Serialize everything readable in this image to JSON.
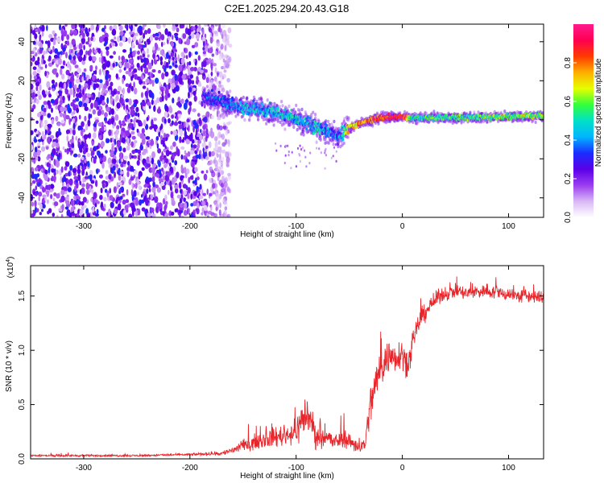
{
  "title": "C2E1.2025.294.20.43.G18",
  "chart_data": [
    {
      "type": "heatmap",
      "xlabel": "Height of straight line (km)",
      "ylabel": "Frequency (Hz)",
      "xlim": [
        -350,
        133
      ],
      "ylim": [
        -50,
        49
      ],
      "xticks": [
        -300,
        -200,
        -100,
        0,
        100
      ],
      "yticks": [
        -40,
        -20,
        0,
        20,
        40
      ],
      "colorbar": {
        "label": "Normalized spectral amplitude",
        "range": [
          0.0,
          1.0
        ],
        "ticks": [
          0.0,
          0.2,
          0.4,
          0.6,
          0.8
        ],
        "tick_labels": [
          "0.0",
          "0.2",
          "0.4",
          "0.6",
          "0.8"
        ],
        "colormap": [
          "#ffffff",
          "#d9b8f5",
          "#9a3cf0",
          "#5a00e8",
          "#1a2dff",
          "#00b6ff",
          "#00e0c8",
          "#33ff3a",
          "#e6ff00",
          "#ffae00",
          "#ff3a00",
          "#ff0050",
          "#ff1a8c"
        ]
      },
      "noise_region_x": [
        -350,
        -162
      ],
      "signal_track": {
        "x": [
          -188,
          -175,
          -160,
          -150,
          -140,
          -130,
          -120,
          -110,
          -100,
          -90,
          -80,
          -70,
          -60,
          -55,
          -50,
          -40,
          -30,
          -20,
          -10,
          0,
          10,
          30,
          60,
          90,
          133
        ],
        "y": [
          12,
          10,
          8,
          6.5,
          6,
          5,
          4,
          2,
          0,
          -2,
          -4,
          -6,
          -9,
          -6,
          -4,
          -2,
          0,
          1,
          1.5,
          1.5,
          1,
          1,
          1.2,
          1.5,
          2
        ],
        "amplitude": [
          0.3,
          0.35,
          0.4,
          0.45,
          0.45,
          0.45,
          0.45,
          0.45,
          0.45,
          0.45,
          0.45,
          0.4,
          0.35,
          0.55,
          0.7,
          0.75,
          0.8,
          0.85,
          0.9,
          0.95,
          0.5,
          0.55,
          0.55,
          0.6,
          0.6
        ]
      }
    },
    {
      "type": "line",
      "xlabel": "Height of straight line (km)",
      "ylabel": "SNR (10 * v/v)",
      "multiplier_label": "(x10",
      "multiplier_exp": "4",
      "xlim": [
        -350,
        133
      ],
      "ylim": [
        0,
        1.78
      ],
      "xticks": [
        -300,
        -200,
        -100,
        0,
        100
      ],
      "yticks": [
        0.0,
        0.5,
        1.0,
        1.5
      ],
      "ytick_labels": [
        "0.0",
        "0.5",
        "1.0",
        "1.5"
      ],
      "color": "#e8252a",
      "series": [
        {
          "name": "SNR",
          "x": [
            -350,
            -300,
            -250,
            -200,
            -170,
            -160,
            -150,
            -140,
            -130,
            -120,
            -110,
            -100,
            -95,
            -90,
            -85,
            -80,
            -75,
            -70,
            -65,
            -60,
            -55,
            -50,
            -45,
            -40,
            -35,
            -30,
            -25,
            -20,
            -15,
            -10,
            -5,
            0,
            5,
            10,
            15,
            20,
            25,
            30,
            35,
            40,
            50,
            60,
            70,
            80,
            90,
            100,
            110,
            120,
            133
          ],
          "y": [
            0.03,
            0.03,
            0.03,
            0.04,
            0.05,
            0.08,
            0.12,
            0.15,
            0.18,
            0.2,
            0.22,
            0.25,
            0.35,
            0.42,
            0.3,
            0.2,
            0.22,
            0.2,
            0.15,
            0.17,
            0.2,
            0.16,
            0.14,
            0.1,
            0.15,
            0.5,
            0.7,
            0.85,
            0.92,
            0.95,
            0.95,
            0.98,
            0.85,
            1.05,
            1.25,
            1.33,
            1.4,
            1.45,
            1.5,
            1.52,
            1.55,
            1.52,
            1.54,
            1.55,
            1.53,
            1.52,
            1.5,
            1.5,
            1.48
          ],
          "noise_amplitude": [
            0.01,
            0.01,
            0.01,
            0.01,
            0.02,
            0.04,
            0.06,
            0.07,
            0.08,
            0.1,
            0.1,
            0.12,
            0.2,
            0.2,
            0.15,
            0.12,
            0.1,
            0.1,
            0.08,
            0.08,
            0.1,
            0.08,
            0.08,
            0.06,
            0.08,
            0.2,
            0.2,
            0.2,
            0.18,
            0.16,
            0.15,
            0.15,
            0.12,
            0.12,
            0.1,
            0.1,
            0.08,
            0.08,
            0.07,
            0.07,
            0.07,
            0.07,
            0.07,
            0.07,
            0.07,
            0.07,
            0.07,
            0.07,
            0.07
          ]
        }
      ]
    }
  ]
}
